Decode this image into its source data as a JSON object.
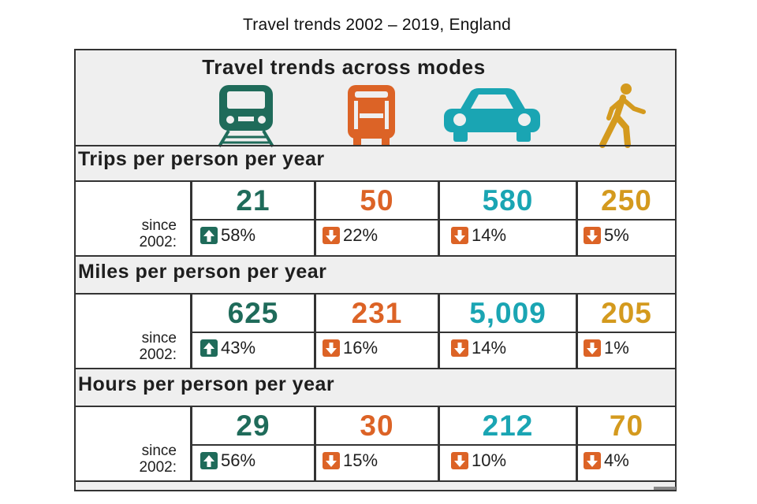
{
  "page_title": "Travel trends 2002 – 2019, England",
  "panel_heading": "Travel trends across modes",
  "modes": [
    {
      "icon": "train-icon",
      "color": "#1f6b5a"
    },
    {
      "icon": "bus-icon",
      "color": "#dc6326"
    },
    {
      "icon": "car-icon",
      "color": "#1aa5b3"
    },
    {
      "icon": "walking-person-icon",
      "color": "#d49a1e"
    }
  ],
  "since_label_line1": "since",
  "since_label_line2": "2002:",
  "sections": [
    {
      "title": "Trips per person per year",
      "values": [
        "21",
        "50",
        "580",
        "250"
      ],
      "changes": [
        {
          "direction": "up",
          "text": "58%"
        },
        {
          "direction": "down",
          "text": "22%"
        },
        {
          "direction": "down",
          "text": "14%"
        },
        {
          "direction": "down",
          "text": "5%"
        }
      ]
    },
    {
      "title": "Miles per person per year",
      "values": [
        "625",
        "231",
        "5,009",
        "205"
      ],
      "changes": [
        {
          "direction": "up",
          "text": "43%"
        },
        {
          "direction": "down",
          "text": "16%"
        },
        {
          "direction": "down",
          "text": "14%"
        },
        {
          "direction": "down",
          "text": "1%"
        }
      ]
    },
    {
      "title": "Hours per person per year",
      "values": [
        "29",
        "30",
        "212",
        "70"
      ],
      "changes": [
        {
          "direction": "up",
          "text": "56%"
        },
        {
          "direction": "down",
          "text": "15%"
        },
        {
          "direction": "down",
          "text": "10%"
        },
        {
          "direction": "down",
          "text": "4%"
        }
      ]
    }
  ],
  "colors": {
    "up_arrow": "#1f6b5a",
    "down_arrow": "#dc6326"
  }
}
